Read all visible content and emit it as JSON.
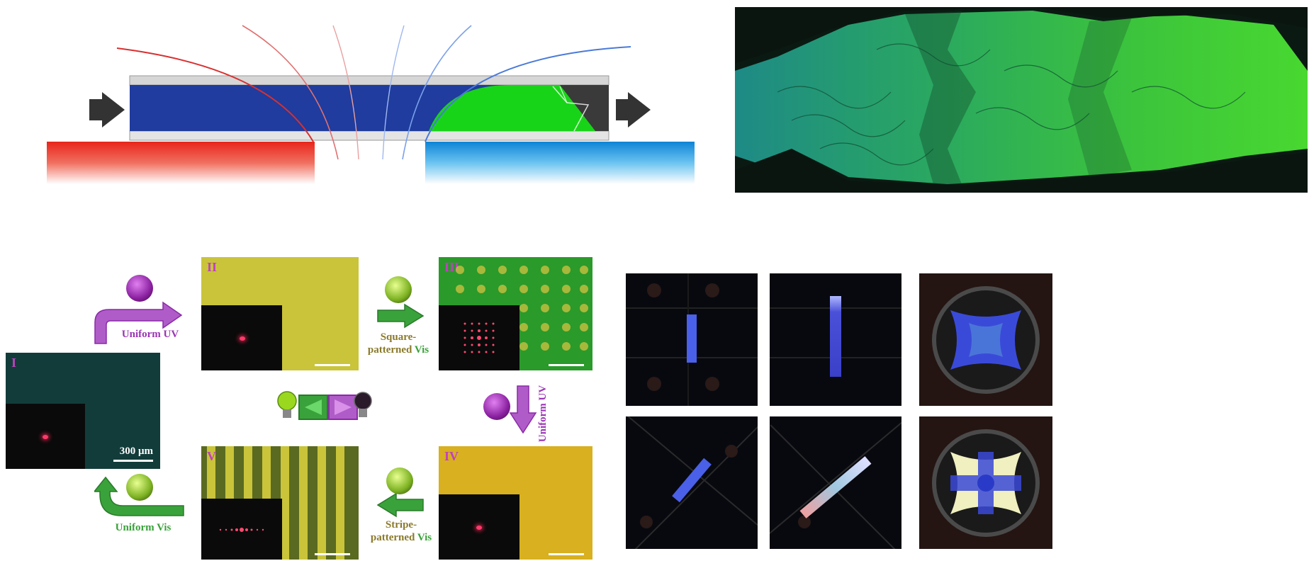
{
  "panels": {
    "I": {
      "label": "I",
      "scale": "300 μm"
    },
    "II": {
      "label": "II"
    },
    "III": {
      "label": "III"
    },
    "IV": {
      "label": "IV"
    },
    "V": {
      "label": "V"
    }
  },
  "steps": {
    "uniform_uv_1": "Uniform UV",
    "square_line1": "Square-",
    "square_line2": "patterned",
    "square_vis": "Vis",
    "uniform_uv_2": "Uniform UV",
    "stripe_line1": "Stripe-",
    "stripe_line2": "patterned",
    "stripe_vis": "Vis",
    "uniform_vis": "Uniform Vis"
  },
  "colors": {
    "red_field": "#e8251b",
    "blue_field": "#1aa0e8",
    "lc_blue": "#1f3c9e",
    "lc_green": "#18d418",
    "uv_purple": "#9b35b5",
    "vis_green": "#3aa23a",
    "panel_yellow": "#c9c43a",
    "panel_green": "#2a9a2a",
    "panel_gold": "#d8b020"
  },
  "icons": [
    "power-uv-icon",
    "power-vis-icon",
    "bulb-green-icon",
    "bulb-dark-icon",
    "play-left-icon",
    "play-right-icon"
  ]
}
